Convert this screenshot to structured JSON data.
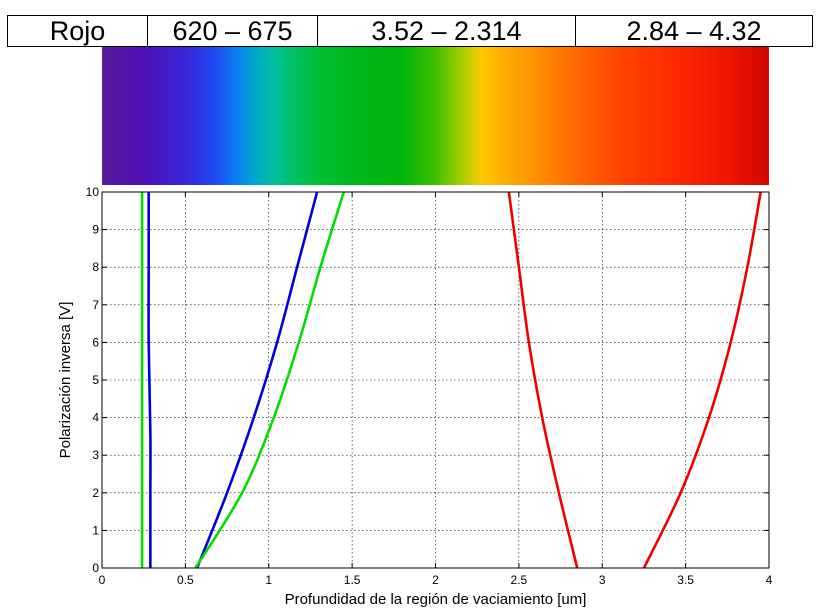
{
  "table_row": {
    "cells": [
      "Rojo",
      "620 – 675",
      "3.52 – 2.314",
      "2.84 – 4.32"
    ]
  },
  "chart_data": {
    "type": "line",
    "xlabel": "Profundidad de la región de vaciamiento [um]",
    "ylabel": "Polarización inversa [V]",
    "xlim": [
      0,
      4
    ],
    "ylim": [
      0,
      10
    ],
    "xticks": [
      "0",
      "0.5",
      "1",
      "1.5",
      "2",
      "2.5",
      "3",
      "3.5",
      "4"
    ],
    "yticks": [
      "0",
      "1",
      "2",
      "3",
      "4",
      "5",
      "6",
      "7",
      "8",
      "9",
      "10"
    ],
    "grid": true,
    "series_colors": [
      "#00dd00",
      "#0000dd",
      "#0000dd",
      "#00dd00",
      "#ee0000",
      "#ee0000"
    ],
    "series": [
      {
        "color": "#00dd00",
        "x": [
          0.24,
          0.24,
          0.24,
          0.24,
          0.24,
          0.24
        ],
        "y": [
          0,
          2,
          4,
          6,
          8,
          10
        ]
      },
      {
        "color": "#0000dd",
        "x": [
          0.29,
          0.29,
          0.29,
          0.28,
          0.28,
          0.28
        ],
        "y": [
          0,
          2,
          3.6,
          6,
          8,
          10
        ]
      },
      {
        "color": "#0000dd",
        "x": [
          0.57,
          0.75,
          0.91,
          1.05,
          1.17,
          1.29
        ],
        "y": [
          0,
          2,
          4,
          6,
          8,
          10
        ]
      },
      {
        "color": "#00dd00",
        "x": [
          0.56,
          0.84,
          1.03,
          1.18,
          1.31,
          1.45
        ],
        "y": [
          0,
          2,
          4,
          6,
          8,
          10
        ]
      },
      {
        "color": "#ee0000",
        "x": [
          2.85,
          2.74,
          2.64,
          2.56,
          2.5,
          2.44
        ],
        "y": [
          0,
          2,
          4,
          6,
          8,
          10
        ]
      },
      {
        "color": "#ee0000",
        "x": [
          3.25,
          3.47,
          3.64,
          3.77,
          3.87,
          3.95
        ],
        "y": [
          0,
          2,
          4,
          6,
          8,
          10
        ]
      }
    ]
  }
}
